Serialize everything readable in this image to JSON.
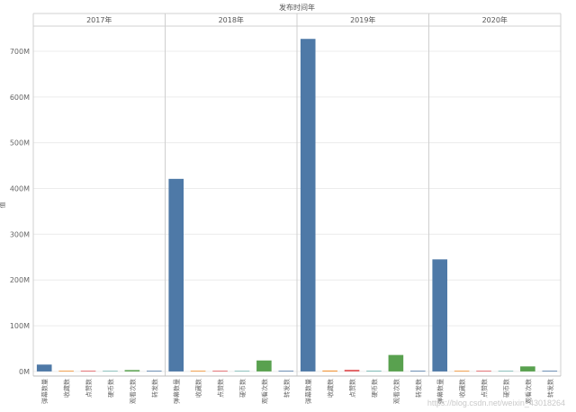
{
  "chart_data": {
    "type": "bar",
    "title": "发布时间年",
    "ylabel": "值",
    "ylim": [
      -10000000,
      755000000
    ],
    "y_ticks": [
      0,
      100000000,
      200000000,
      300000000,
      400000000,
      500000000,
      600000000,
      700000000
    ],
    "y_tick_labels": [
      "0M",
      "100M",
      "200M",
      "300M",
      "400M",
      "500M",
      "600M",
      "700M"
    ],
    "categories": [
      "弹幕数量",
      "收藏数",
      "点赞数",
      "硬币数",
      "观看次数",
      "转发数"
    ],
    "panels": [
      {
        "year": "2017年",
        "values": [
          15000000,
          300000,
          400000,
          200000,
          3000000,
          100000
        ]
      },
      {
        "year": "2018年",
        "values": [
          421000000,
          600000,
          1500000,
          1000000,
          24000000,
          400000
        ]
      },
      {
        "year": "2019年",
        "values": [
          727000000,
          2000000,
          3500000,
          1800000,
          36000000,
          700000
        ]
      },
      {
        "year": "2020年",
        "values": [
          245000000,
          800000,
          1500000,
          1000000,
          11000000,
          300000
        ]
      }
    ],
    "colors": {
      "弹幕数量": "#4e79a7",
      "收藏数": "#f28e2b",
      "点赞数": "#e15759",
      "硬币数": "#76b7b2",
      "观看次数": "#59a14f",
      "转发数": "#4e79a7"
    },
    "grid": true,
    "legend": "none"
  },
  "watermark": "https://blog.csdn.net/weixin_43018264"
}
